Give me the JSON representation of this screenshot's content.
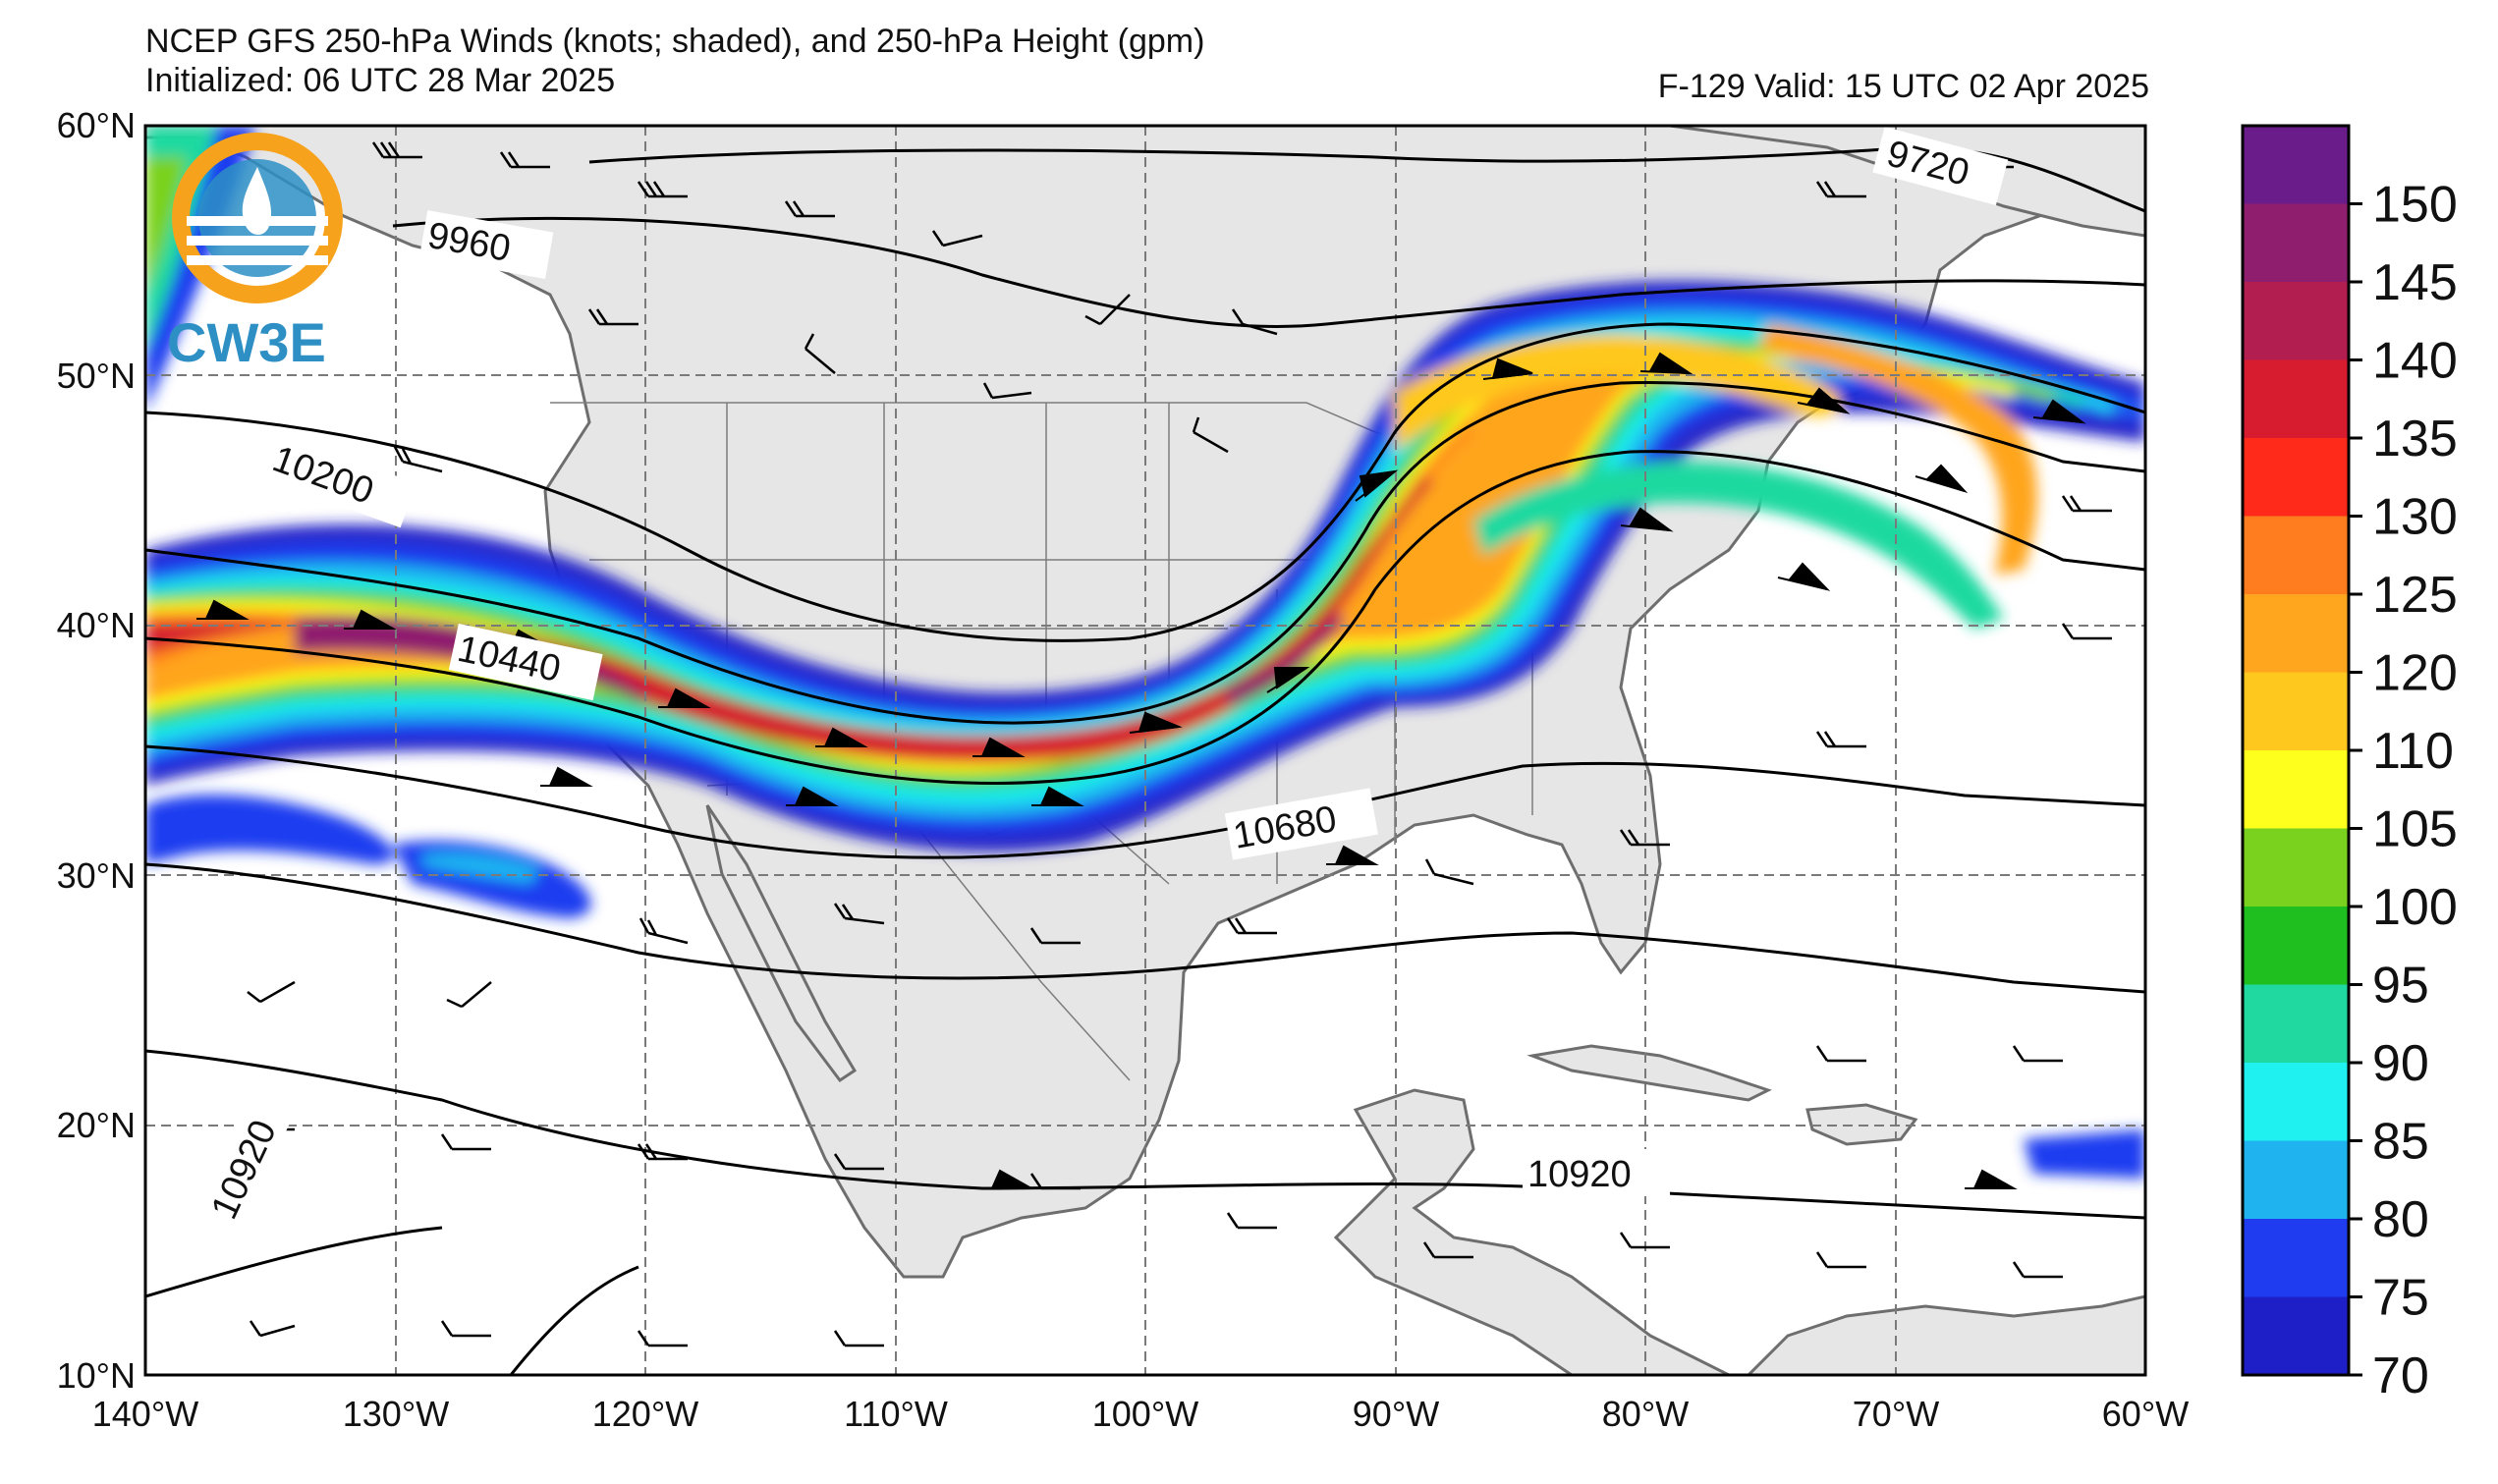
{
  "title": {
    "line1": "NCEP GFS 250-hPa Winds (knots; shaded), and 250-hPa Height (gpm)",
    "line2": "Initialized: 06 UTC 28 Mar 2025",
    "valid": "F-129  Valid: 15 UTC 02 Apr 2025"
  },
  "logo": {
    "text": "CW3E",
    "icon": "cw3e-logo-icon"
  },
  "axes": {
    "lat_labels": [
      "60°N",
      "50°N",
      "40°N",
      "30°N",
      "20°N",
      "10°N"
    ],
    "lon_labels": [
      "140°W",
      "130°W",
      "120°W",
      "110°W",
      "100°W",
      "90°W",
      "80°W",
      "70°W",
      "60°W"
    ],
    "lat_range": [
      10,
      60
    ],
    "lon_range": [
      -140,
      -60
    ]
  },
  "colorbar": {
    "labels": [
      "150",
      "145",
      "140",
      "135",
      "130",
      "125",
      "120",
      "110",
      "105",
      "100",
      "95",
      "90",
      "85",
      "80",
      "75",
      "70"
    ],
    "colors": [
      "#6a1d8a",
      "#8f1f6e",
      "#b21e50",
      "#d61c2e",
      "#ff2a1a",
      "#ff7d1e",
      "#ffa51e",
      "#ffc81e",
      "#ffff1e",
      "#7ad21e",
      "#1fbf1f",
      "#1fd9a0",
      "#1ff0f0",
      "#1fb4f0",
      "#1f3cf0",
      "#1f1fc8"
    ]
  },
  "contours": {
    "labels": [
      "9720",
      "9960",
      "10200",
      "10440",
      "10680",
      "10920",
      "10920"
    ]
  },
  "colors": {
    "land": "#e6e6e6",
    "ocean": "#ffffff",
    "coast": "#6e6e6e",
    "grid": "#7a7a7a"
  }
}
